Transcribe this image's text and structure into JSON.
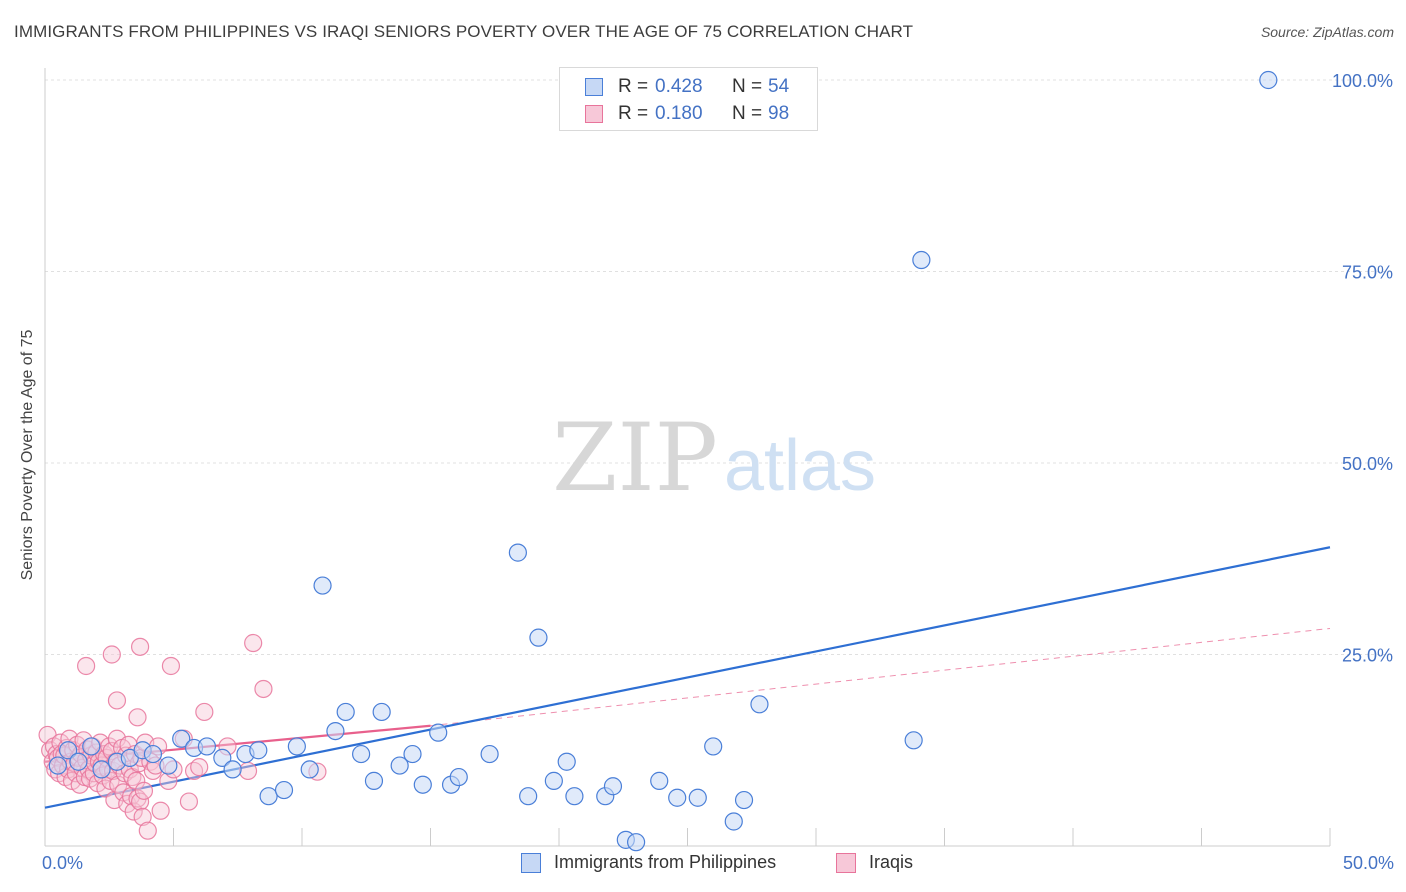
{
  "title": "IMMIGRANTS FROM PHILIPPINES VS IRAQI SENIORS POVERTY OVER THE AGE OF 75 CORRELATION CHART",
  "source": "Source: ZipAtlas.com",
  "watermark": {
    "zip": "ZIP",
    "atlas": "atlas"
  },
  "colors": {
    "blue": "#4a7fd8",
    "blue_fill": "#c6d8f5",
    "blue_line": "#2e6fd3",
    "pink": "#e8749b",
    "pink_fill": "#f7c8d8",
    "pink_line": "#e8608c",
    "axis_value": "#4472c4",
    "grid": "#e0e0e0"
  },
  "legend": {
    "rows": [
      {
        "name": "philippines",
        "r_label": "R =",
        "r_value": "0.428",
        "n_label": "N =",
        "n_value": "54"
      },
      {
        "name": "iraqis",
        "r_label": "R =",
        "r_value": "0.180",
        "n_label": "N =",
        "n_value": "98"
      }
    ]
  },
  "bottom_legend": {
    "series1": "Immigrants from Philippines",
    "series2": "Iraqis"
  },
  "chart_data": {
    "type": "scatter",
    "title": "IMMIGRANTS FROM PHILIPPINES VS IRAQI SENIORS POVERTY OVER THE AGE OF 75 CORRELATION CHART",
    "xlabel": "",
    "ylabel": "Seniors Poverty Over the Age of 75",
    "xlim": [
      0,
      50
    ],
    "ylim": [
      0,
      100
    ],
    "x_tick_labels": [
      {
        "value": 0,
        "label": "0.0%"
      },
      {
        "value": 50,
        "label": "50.0%"
      }
    ],
    "y_tick_labels": [
      {
        "value": 25,
        "label": "25.0%"
      },
      {
        "value": 50,
        "label": "50.0%"
      },
      {
        "value": 75,
        "label": "75.0%"
      },
      {
        "value": 100,
        "label": "100.0%"
      }
    ],
    "series": [
      {
        "name": "Immigrants from Philippines",
        "color": "#4a7fd8",
        "trend": {
          "x0": 0,
          "y0": 5.0,
          "x1": 50,
          "y1": 39.0,
          "style": "solid"
        },
        "points": [
          [
            0.5,
            10.5
          ],
          [
            0.9,
            12.5
          ],
          [
            1.3,
            11.0
          ],
          [
            1.8,
            13.0
          ],
          [
            2.2,
            10.0
          ],
          [
            2.8,
            11.0
          ],
          [
            3.3,
            11.5
          ],
          [
            3.8,
            12.5
          ],
          [
            4.2,
            12.0
          ],
          [
            4.8,
            10.5
          ],
          [
            5.3,
            14.0
          ],
          [
            5.8,
            12.8
          ],
          [
            6.3,
            13.0
          ],
          [
            6.9,
            11.5
          ],
          [
            7.3,
            10.0
          ],
          [
            7.8,
            12.0
          ],
          [
            8.3,
            12.5
          ],
          [
            8.7,
            6.5
          ],
          [
            9.3,
            7.3
          ],
          [
            9.8,
            13.0
          ],
          [
            10.3,
            10.0
          ],
          [
            10.8,
            34.0
          ],
          [
            11.3,
            15.0
          ],
          [
            11.7,
            17.5
          ],
          [
            12.3,
            12.0
          ],
          [
            12.8,
            8.5
          ],
          [
            13.1,
            17.5
          ],
          [
            13.8,
            10.5
          ],
          [
            14.3,
            12.0
          ],
          [
            14.7,
            8.0
          ],
          [
            15.3,
            14.8
          ],
          [
            15.8,
            8.0
          ],
          [
            16.1,
            9.0
          ],
          [
            17.3,
            12.0
          ],
          [
            18.4,
            38.3
          ],
          [
            18.8,
            6.5
          ],
          [
            19.2,
            27.2
          ],
          [
            19.8,
            8.5
          ],
          [
            20.3,
            11.0
          ],
          [
            20.6,
            6.5
          ],
          [
            21.8,
            6.5
          ],
          [
            22.1,
            7.8
          ],
          [
            22.6,
            0.8
          ],
          [
            23.0,
            0.5
          ],
          [
            23.9,
            8.5
          ],
          [
            24.6,
            6.3
          ],
          [
            25.4,
            6.3
          ],
          [
            26.0,
            13.0
          ],
          [
            26.8,
            3.2
          ],
          [
            27.2,
            6.0
          ],
          [
            27.8,
            18.5
          ],
          [
            34.1,
            76.5
          ],
          [
            33.8,
            13.8
          ],
          [
            47.6,
            100.0
          ]
        ]
      },
      {
        "name": "Iraqis",
        "color": "#e8749b",
        "trend": {
          "x0": 0,
          "y0": 11.0,
          "x1": 15,
          "y1": 15.7,
          "style": "solid"
        },
        "trend_extension": {
          "x0": 15,
          "y0": 15.7,
          "x1": 50,
          "y1": 28.4,
          "style": "dashed"
        },
        "points": [
          [
            0.1,
            14.5
          ],
          [
            0.2,
            12.5
          ],
          [
            0.3,
            11.0
          ],
          [
            0.35,
            13.0
          ],
          [
            0.4,
            10.0
          ],
          [
            0.45,
            12.0
          ],
          [
            0.5,
            11.5
          ],
          [
            0.55,
            9.5
          ],
          [
            0.6,
            13.5
          ],
          [
            0.65,
            12.0
          ],
          [
            0.7,
            10.5
          ],
          [
            0.75,
            11.8
          ],
          [
            0.8,
            9.0
          ],
          [
            0.85,
            12.8
          ],
          [
            0.9,
            10.0
          ],
          [
            0.95,
            14.0
          ],
          [
            1.0,
            11.0
          ],
          [
            1.05,
            8.5
          ],
          [
            1.1,
            12.5
          ],
          [
            1.15,
            10.8
          ],
          [
            1.2,
            9.5
          ],
          [
            1.25,
            13.2
          ],
          [
            1.3,
            11.5
          ],
          [
            1.35,
            8.0
          ],
          [
            1.4,
            12.0
          ],
          [
            1.45,
            10.2
          ],
          [
            1.5,
            13.8
          ],
          [
            1.55,
            9.0
          ],
          [
            1.6,
            11.2
          ],
          [
            1.65,
            12.6
          ],
          [
            1.7,
            10.0
          ],
          [
            1.75,
            8.8
          ],
          [
            1.8,
            11.8
          ],
          [
            1.85,
            13.0
          ],
          [
            1.9,
            9.5
          ],
          [
            1.95,
            10.8
          ],
          [
            2.0,
            12.2
          ],
          [
            2.05,
            8.2
          ],
          [
            2.1,
            11.0
          ],
          [
            2.15,
            13.5
          ],
          [
            2.2,
            10.5
          ],
          [
            2.25,
            9.2
          ],
          [
            2.3,
            12.0
          ],
          [
            2.35,
            7.5
          ],
          [
            2.4,
            11.5
          ],
          [
            2.45,
            10.0
          ],
          [
            2.5,
            13.0
          ],
          [
            2.55,
            8.5
          ],
          [
            2.6,
            12.4
          ],
          [
            2.65,
            9.8
          ],
          [
            2.7,
            6.0
          ],
          [
            2.75,
            11.0
          ],
          [
            2.8,
            14.0
          ],
          [
            2.85,
            8.0
          ],
          [
            2.9,
            10.5
          ],
          [
            3.0,
            12.8
          ],
          [
            3.05,
            7.0
          ],
          [
            3.1,
            9.5
          ],
          [
            3.15,
            11.8
          ],
          [
            3.2,
            5.5
          ],
          [
            3.25,
            13.2
          ],
          [
            3.3,
            10.0
          ],
          [
            3.35,
            6.5
          ],
          [
            3.4,
            9.0
          ],
          [
            3.45,
            4.5
          ],
          [
            3.5,
            12.0
          ],
          [
            3.55,
            8.5
          ],
          [
            3.6,
            6.2
          ],
          [
            3.65,
            10.8
          ],
          [
            3.7,
            5.8
          ],
          [
            3.75,
            11.5
          ],
          [
            3.8,
            3.8
          ],
          [
            3.85,
            7.2
          ],
          [
            3.9,
            13.5
          ],
          [
            4.0,
            2.0
          ],
          [
            4.1,
            11.0
          ],
          [
            4.2,
            9.8
          ],
          [
            4.3,
            10.5
          ],
          [
            1.6,
            23.5
          ],
          [
            2.6,
            25.0
          ],
          [
            2.8,
            19.0
          ],
          [
            3.6,
            16.8
          ],
          [
            3.7,
            26.0
          ],
          [
            4.5,
            4.6
          ],
          [
            4.8,
            8.5
          ],
          [
            5.0,
            10.0
          ],
          [
            4.4,
            13.0
          ],
          [
            4.9,
            23.5
          ],
          [
            5.4,
            14.0
          ],
          [
            5.6,
            5.8
          ],
          [
            5.8,
            9.8
          ],
          [
            6.0,
            10.3
          ],
          [
            6.2,
            17.5
          ],
          [
            7.1,
            13.0
          ],
          [
            7.9,
            9.8
          ],
          [
            8.1,
            26.5
          ],
          [
            8.5,
            20.5
          ],
          [
            10.6,
            9.7
          ]
        ]
      }
    ]
  }
}
